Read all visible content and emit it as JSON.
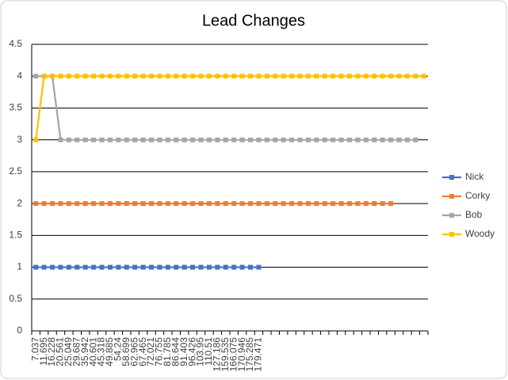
{
  "chart_data": {
    "type": "line",
    "title": "Lead Changes",
    "categories": [
      "7.037",
      "11.695",
      "16.228",
      "20.561",
      "25.049",
      "29.687",
      "35.942",
      "40.601",
      "45.318",
      "49.885",
      "54.24",
      "58.699",
      "62.965",
      "67.465",
      "72.021",
      "76.755",
      "81.785",
      "86.644",
      "91.403",
      "96.426",
      "103.95",
      "110.51",
      "127.186",
      "159.535",
      "166.075",
      "170.946",
      "175.285",
      "179.471",
      null,
      null,
      null,
      null,
      null,
      null,
      null,
      null,
      null,
      null,
      null,
      null,
      null,
      null,
      null,
      null,
      null,
      null,
      null,
      null
    ],
    "series": [
      {
        "name": "Nick",
        "color": "#4472c4",
        "values": [
          1,
          1,
          1,
          1,
          1,
          1,
          1,
          1,
          1,
          1,
          1,
          1,
          1,
          1,
          1,
          1,
          1,
          1,
          1,
          1,
          1,
          1,
          1,
          1,
          1,
          1,
          1,
          1,
          null,
          null,
          null,
          null,
          null,
          null,
          null,
          null,
          null,
          null,
          null,
          null,
          null,
          null,
          null,
          null,
          null,
          null,
          null,
          null
        ]
      },
      {
        "name": "Corky",
        "color": "#ed7d31",
        "values": [
          2,
          2,
          2,
          2,
          2,
          2,
          2,
          2,
          2,
          2,
          2,
          2,
          2,
          2,
          2,
          2,
          2,
          2,
          2,
          2,
          2,
          2,
          2,
          2,
          2,
          2,
          2,
          2,
          2,
          2,
          2,
          2,
          2,
          2,
          2,
          2,
          2,
          2,
          2,
          2,
          2,
          2,
          2,
          2,
          null,
          null,
          null,
          null
        ]
      },
      {
        "name": "Bob",
        "color": "#a5a5a5",
        "values": [
          4,
          4,
          4,
          3,
          3,
          3,
          3,
          3,
          3,
          3,
          3,
          3,
          3,
          3,
          3,
          3,
          3,
          3,
          3,
          3,
          3,
          3,
          3,
          3,
          3,
          3,
          3,
          3,
          3,
          3,
          3,
          3,
          3,
          3,
          3,
          3,
          3,
          3,
          3,
          3,
          3,
          3,
          3,
          3,
          3,
          3,
          3,
          null
        ]
      },
      {
        "name": "Woody",
        "color": "#ffc000",
        "values": [
          3,
          4,
          4,
          4,
          4,
          4,
          4,
          4,
          4,
          4,
          4,
          4,
          4,
          4,
          4,
          4,
          4,
          4,
          4,
          4,
          4,
          4,
          4,
          4,
          4,
          4,
          4,
          4,
          4,
          4,
          4,
          4,
          4,
          4,
          4,
          4,
          4,
          4,
          4,
          4,
          4,
          4,
          4,
          4,
          4,
          4,
          4,
          4
        ]
      }
    ],
    "ylim": [
      0,
      4.5
    ],
    "yticks": [
      0,
      0.5,
      1,
      1.5,
      2,
      2.5,
      3,
      3.5,
      4,
      4.5
    ],
    "grid": true,
    "legend": "right"
  }
}
